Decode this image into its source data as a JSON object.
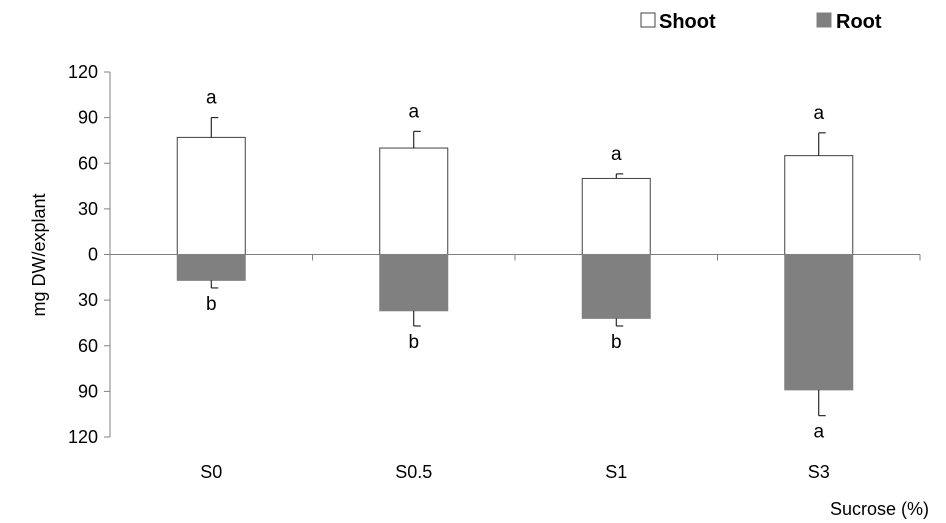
{
  "chart_data": {
    "type": "bar",
    "xlabel": "Sucrose (%)",
    "ylabel": "mg DW/explant",
    "categories": [
      "S0",
      "S0.5",
      "S1",
      "S3"
    ],
    "ylim": [
      -120,
      120
    ],
    "yticks": [
      120,
      90,
      60,
      30,
      0,
      -30,
      -60,
      -90,
      -120
    ],
    "ytick_labels": [
      "120",
      "90",
      "60",
      "30",
      "0",
      "30",
      "60",
      "90",
      "120"
    ],
    "legend_position": "top-right",
    "grid": false,
    "series": [
      {
        "name": "Shoot",
        "color": "#ffffff",
        "values": [
          77,
          70,
          50,
          65
        ],
        "errors": [
          13,
          11,
          3,
          15
        ],
        "significance": [
          "a",
          "a",
          "a",
          "a"
        ]
      },
      {
        "name": "Root",
        "color": "#808080",
        "values": [
          -17,
          -37,
          -42,
          -89
        ],
        "errors": [
          5,
          10,
          5,
          17
        ],
        "significance": [
          "b",
          "b",
          "b",
          "a"
        ]
      }
    ]
  }
}
